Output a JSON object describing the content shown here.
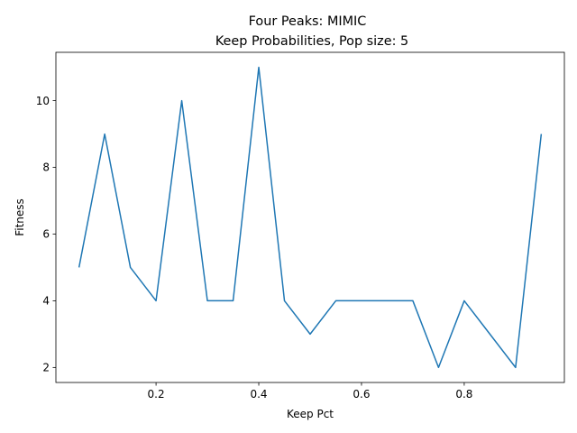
{
  "chart_data": {
    "type": "line",
    "title": "Four Peaks: MIMIC",
    "subtitle": "Keep Probabilities, Pop size: 5",
    "xlabel": "Keep Pct",
    "ylabel": "Fitness",
    "xlim": [
      0.005,
      0.995
    ],
    "ylim": [
      1.55,
      11.45
    ],
    "xticks": [
      0.2,
      0.4,
      0.6,
      0.8
    ],
    "xtick_labels": [
      "0.2",
      "0.4",
      "0.6",
      "0.8"
    ],
    "yticks": [
      2,
      4,
      6,
      8,
      10
    ],
    "ytick_labels": [
      "2",
      "4",
      "6",
      "8",
      "10"
    ],
    "grid": false,
    "series": [
      {
        "color": "#1f77b4",
        "x": [
          0.05,
          0.1,
          0.15,
          0.2,
          0.25,
          0.3,
          0.35,
          0.4,
          0.45,
          0.5,
          0.55,
          0.6,
          0.65,
          0.7,
          0.75,
          0.8,
          0.85,
          0.9,
          0.95
        ],
        "y": [
          5,
          9,
          5,
          4,
          10,
          4,
          4,
          11,
          4,
          3,
          4,
          4,
          4,
          4,
          2,
          4,
          3,
          2,
          9
        ]
      }
    ]
  }
}
